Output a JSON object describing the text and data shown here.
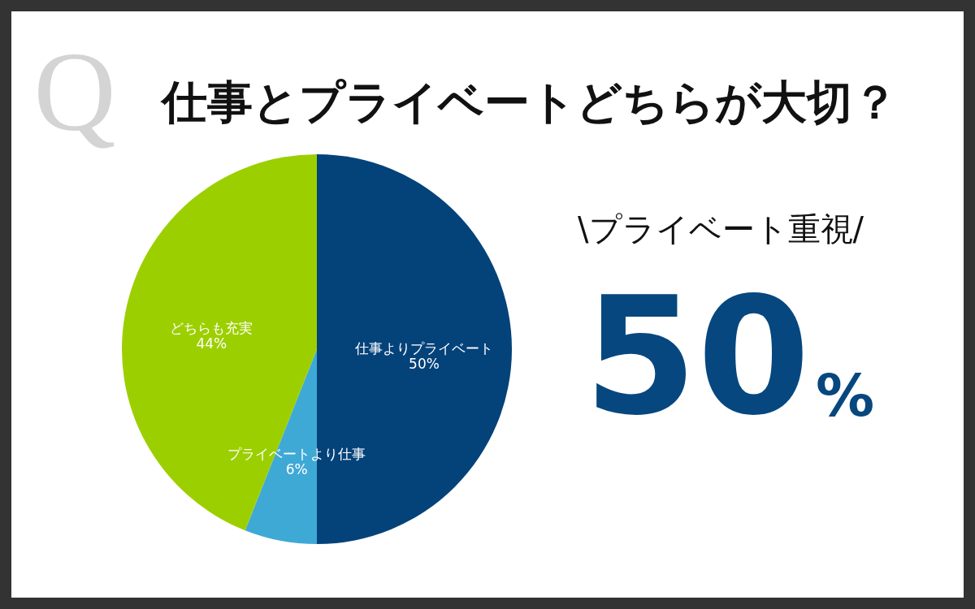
{
  "chart_data": {
    "type": "pie",
    "title": "仕事とプライベートどちらが大切？",
    "categories": [
      "仕事よりプライベート",
      "プライベートより仕事",
      "どちらも充実"
    ],
    "values": [
      50,
      6,
      44
    ],
    "colors": [
      "#04427a",
      "#3fa9d6",
      "#9ccf00"
    ],
    "value_labels": [
      "50%",
      "6%",
      "44%"
    ],
    "annotations": [
      "Q",
      "\\プライベート重視/",
      "50",
      "%"
    ]
  }
}
